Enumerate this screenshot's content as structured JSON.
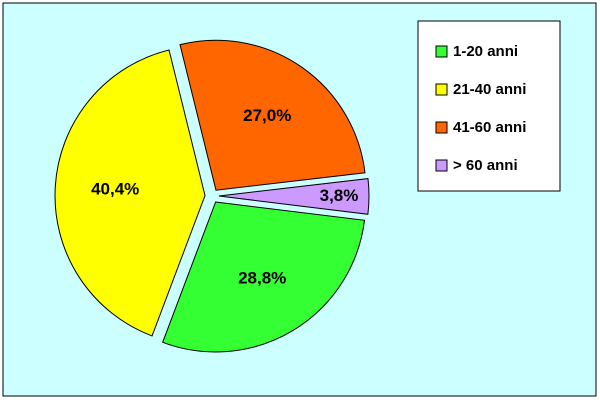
{
  "chart_data": {
    "type": "pie",
    "categories": [
      "1-20 anni",
      "21-40 anni",
      "41-60 anni",
      "> 60 anni"
    ],
    "values": [
      28.8,
      40.4,
      27.0,
      3.8
    ],
    "value_labels": [
      "28,8%",
      "40,4%",
      "27,0%",
      "3,8%"
    ],
    "colors": [
      "#33ff33",
      "#ffff00",
      "#ff6600",
      "#cc99ff"
    ],
    "legend": "right"
  }
}
